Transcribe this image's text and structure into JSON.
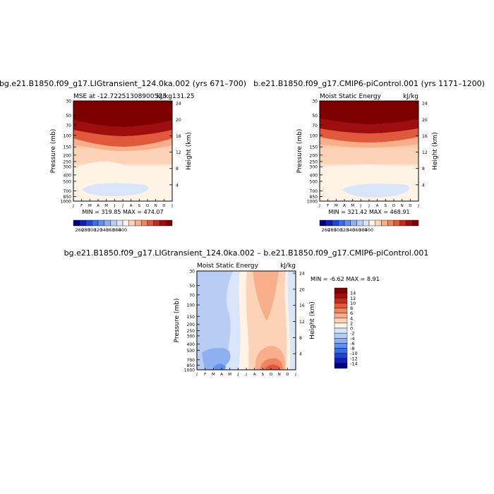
{
  "colors": {
    "levels": [
      "#00007e",
      "#0e1fb4",
      "#1e45d4",
      "#3a6de8",
      "#6190ee",
      "#8fb0f0",
      "#b8cdf3",
      "#d9e6fa",
      "#fff3e6",
      "#fcd3b6",
      "#f8ae88",
      "#f08460",
      "#e0593c",
      "#c42a1e",
      "#9e0e0e",
      "#7e0000"
    ]
  },
  "chart_data": [
    {
      "type": "heatmap",
      "title": "bg.e21.B1850.f09_g17.LIGtransient_124.0ka.002 (yrs 671–700)",
      "subtitle_left": "MSE at -12.72251308900523",
      "subtitle_right": "kJ/kg",
      "subtitle_overlap": "131.25",
      "stats": "MIN = 319.85   MAX = 474.07",
      "ylabel": "Pressure (mb)",
      "ylabel_right": "Height (km)",
      "x_ticks": [
        "J",
        "F",
        "M",
        "A",
        "M",
        "J",
        "J",
        "A",
        "S",
        "O",
        "N",
        "D",
        "J"
      ],
      "y_ticks": [
        "30",
        "50",
        "70",
        "100",
        "150",
        "200",
        "250",
        "300",
        "400",
        "500",
        "700",
        "850",
        "1000"
      ],
      "height_ticks": [
        "24",
        "20",
        "16",
        "12",
        "8",
        "4"
      ],
      "colorbar_labels": [
        "260",
        "280",
        "300",
        "320",
        "340",
        "360",
        "380",
        "400"
      ],
      "layers_top_to_bottom": [
        ">400",
        "380-400",
        "360-380",
        "340-360",
        "320-340",
        "300-320"
      ]
    },
    {
      "type": "heatmap",
      "title": "b.e21.B1850.f09_g17.CMIP6-piControl.001 (yrs 1171–1200)",
      "subtitle_left": "Moist Static Energy",
      "subtitle_right": "kJ/kg",
      "stats": "MIN = 321.42   MAX = 468.91",
      "ylabel": "Pressure (mb)",
      "ylabel_right": "Height (km)",
      "x_ticks": [
        "J",
        "F",
        "M",
        "A",
        "M",
        "J",
        "J",
        "A",
        "S",
        "O",
        "N",
        "D",
        "J"
      ],
      "y_ticks": [
        "30",
        "50",
        "70",
        "100",
        "150",
        "200",
        "250",
        "300",
        "400",
        "500",
        "700",
        "850",
        "1000"
      ],
      "height_ticks": [
        "24",
        "20",
        "16",
        "12",
        "8",
        "4"
      ],
      "colorbar_labels": [
        "260",
        "280",
        "300",
        "320",
        "340",
        "360",
        "380",
        "400"
      ]
    },
    {
      "type": "heatmap",
      "title": "bg.e21.B1850.f09_g17.LIGtransient_124.0ka.002 – b.e21.B1850.f09_g17.CMIP6-piControl.001",
      "subtitle_left": "Moist Static Energy",
      "subtitle_right": "kJ/kg",
      "stats": "MIN = -6.62   MAX =   8.91",
      "ylabel": "Pressure (mb)",
      "ylabel_right": "Height (km)",
      "x_ticks": [
        "J",
        "F",
        "M",
        "A",
        "M",
        "J",
        "J",
        "A",
        "S",
        "O",
        "N",
        "D",
        "J"
      ],
      "y_ticks": [
        "30",
        "50",
        "70",
        "100",
        "150",
        "200",
        "250",
        "300",
        "400",
        "500",
        "700",
        "850",
        "1000"
      ],
      "height_ticks": [
        "24",
        "20",
        "16",
        "12",
        "8",
        "4"
      ],
      "colorbar_labels": [
        "14",
        "12",
        "10",
        "8",
        "6",
        "4",
        "2",
        "0",
        "-2",
        "-4",
        "-6",
        "-8",
        "-10",
        "-12",
        "-14"
      ]
    }
  ]
}
